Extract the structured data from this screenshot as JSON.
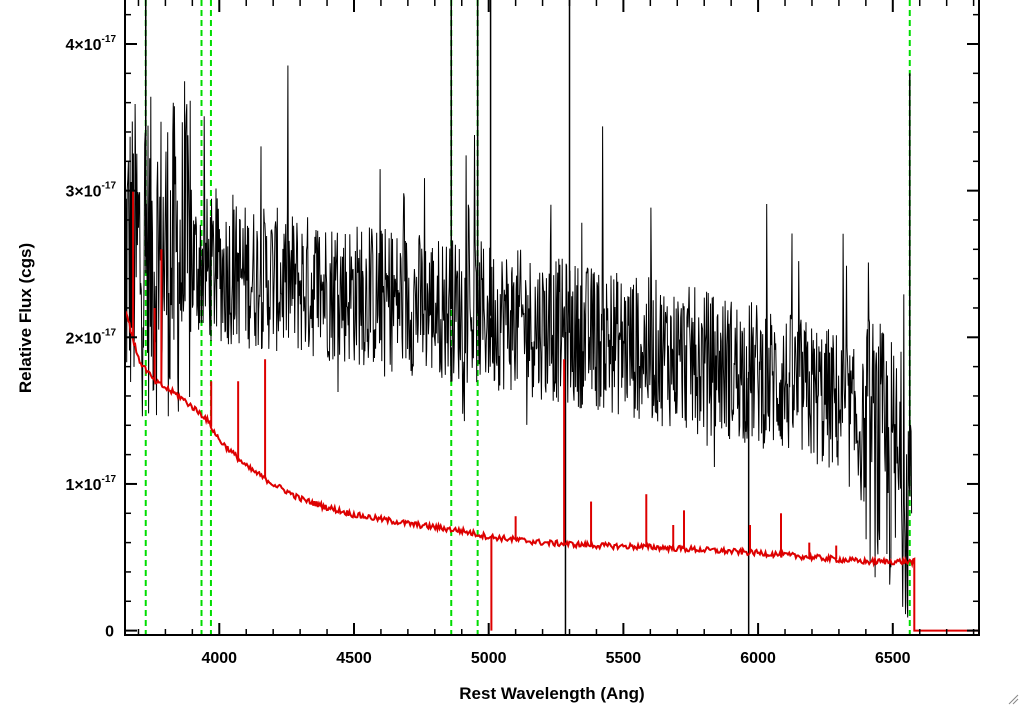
{
  "chart_data": {
    "type": "line",
    "xlabel": "Rest Wavelength (Ang)",
    "ylabel": "Relative Flux (cgs)",
    "xlim": [
      3650,
      6820
    ],
    "ylim": [
      -3e-19,
      4.3e-17
    ],
    "x_ticks": [
      4000,
      4500,
      5000,
      5500,
      6000,
      6500
    ],
    "x_tick_labels": [
      "4000",
      "4500",
      "5000",
      "5500",
      "6000",
      "6500"
    ],
    "y_ticks": [
      0,
      1e-17,
      2e-17,
      3e-17,
      4e-17
    ],
    "y_tick_labels": [
      {
        "base": "0",
        "exp": ""
      },
      {
        "base": "1×10",
        "exp": "-17"
      },
      {
        "base": "2×10",
        "exp": "-17"
      },
      {
        "base": "3×10",
        "exp": "-17"
      },
      {
        "base": "4×10",
        "exp": "-17"
      }
    ],
    "grid": false,
    "colors": {
      "spectrum": "#000000",
      "model": "#dd0000",
      "lines": "#00dd00"
    },
    "marker_lines": [
      3727,
      3934,
      3969,
      4861,
      4959,
      6563
    ],
    "series": [
      {
        "role": "observed spectrum",
        "color": "#000000",
        "x_range": [
          3650,
          6570
        ],
        "continuum": [
          [
            3650,
            2.55
          ],
          [
            3800,
            2.55
          ],
          [
            4000,
            2.45
          ],
          [
            4500,
            2.3
          ],
          [
            5000,
            2.15
          ],
          [
            5500,
            1.95
          ],
          [
            6000,
            1.75
          ],
          [
            6300,
            1.55
          ],
          [
            6570,
            0.95
          ]
        ],
        "noise_scale_e17": 0.5,
        "spikes": [
          [
            3727,
            4.3
          ],
          [
            4861,
            4.3
          ],
          [
            4959,
            4.3
          ],
          [
            5007,
            4.3
          ],
          [
            5300,
            4.3
          ],
          [
            5285,
            -0.03
          ],
          [
            5965,
            -0.03
          ],
          [
            6563,
            3.8
          ]
        ]
      },
      {
        "role": "model",
        "color": "#dd0000",
        "points": [
          [
            3650,
            2.2
          ],
          [
            3700,
            1.85
          ],
          [
            3760,
            1.7
          ],
          [
            3850,
            1.6
          ],
          [
            3950,
            1.45
          ],
          [
            4000,
            1.3
          ],
          [
            4100,
            1.12
          ],
          [
            4200,
            1.0
          ],
          [
            4300,
            0.9
          ],
          [
            4400,
            0.84
          ],
          [
            4500,
            0.79
          ],
          [
            4700,
            0.73
          ],
          [
            4900,
            0.68
          ],
          [
            5000,
            0.64
          ],
          [
            5200,
            0.6
          ],
          [
            5400,
            0.58
          ],
          [
            5600,
            0.57
          ],
          [
            5800,
            0.55
          ],
          [
            6000,
            0.53
          ],
          [
            6200,
            0.5
          ],
          [
            6400,
            0.47
          ],
          [
            6580,
            0.47
          ]
        ],
        "flat_after": 6580,
        "spikes": [
          [
            3680,
            3.0
          ],
          [
            3760,
            2.2
          ],
          [
            3785,
            2.6
          ],
          [
            3970,
            1.7
          ],
          [
            4070,
            1.7
          ],
          [
            4170,
            1.85
          ],
          [
            5100,
            0.78
          ],
          [
            5280,
            1.85
          ],
          [
            5380,
            0.88
          ],
          [
            5585,
            0.93
          ],
          [
            5685,
            0.72
          ],
          [
            5725,
            0.82
          ],
          [
            5970,
            0.72
          ],
          [
            6085,
            0.8
          ],
          [
            6190,
            0.6
          ],
          [
            6290,
            0.58
          ]
        ]
      }
    ]
  }
}
